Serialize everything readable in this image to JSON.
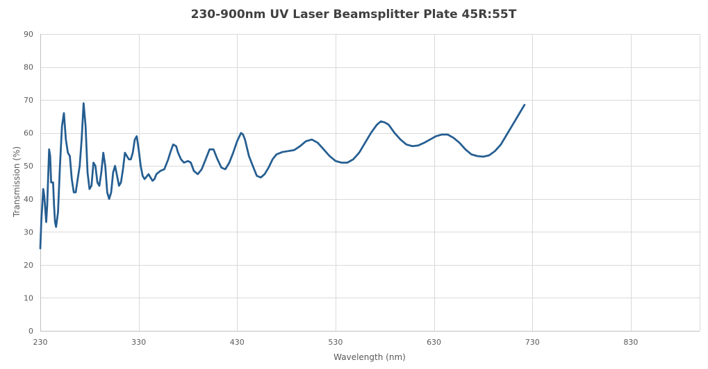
{
  "chart_data": {
    "type": "line",
    "title": "230-900nm UV Laser Beamsplitter Plate 45R:55T",
    "xlabel": "Wavelength (nm)",
    "ylabel": "Transmission (%)",
    "xlim": [
      230,
      900
    ],
    "ylim": [
      0,
      90
    ],
    "x_ticks": [
      230,
      330,
      430,
      530,
      630,
      730,
      830
    ],
    "y_ticks": [
      0,
      10,
      20,
      30,
      40,
      50,
      60,
      70,
      80,
      90
    ],
    "grid": true,
    "legend": "none",
    "series": [
      {
        "color": "#255e91",
        "points": [
          [
            230,
            25
          ],
          [
            231,
            33
          ],
          [
            233,
            43
          ],
          [
            234,
            41
          ],
          [
            236,
            33
          ],
          [
            237,
            38
          ],
          [
            239,
            55
          ],
          [
            240,
            53
          ],
          [
            241,
            45
          ],
          [
            243,
            45
          ],
          [
            244,
            38
          ],
          [
            245,
            33
          ],
          [
            246,
            31.5
          ],
          [
            248,
            36
          ],
          [
            250,
            50
          ],
          [
            252,
            62
          ],
          [
            254,
            66
          ],
          [
            256,
            58
          ],
          [
            258,
            54
          ],
          [
            260,
            53
          ],
          [
            262,
            46
          ],
          [
            264,
            42
          ],
          [
            266,
            42
          ],
          [
            268,
            46
          ],
          [
            270,
            50
          ],
          [
            272,
            58
          ],
          [
            274,
            69
          ],
          [
            276,
            62
          ],
          [
            278,
            48
          ],
          [
            280,
            43
          ],
          [
            282,
            44
          ],
          [
            284,
            51
          ],
          [
            286,
            50
          ],
          [
            288,
            45
          ],
          [
            290,
            44
          ],
          [
            292,
            48
          ],
          [
            294,
            54
          ],
          [
            296,
            50
          ],
          [
            298,
            42
          ],
          [
            300,
            40
          ],
          [
            302,
            42
          ],
          [
            304,
            48
          ],
          [
            306,
            50
          ],
          [
            308,
            47
          ],
          [
            310,
            44
          ],
          [
            312,
            45
          ],
          [
            314,
            49
          ],
          [
            316,
            54
          ],
          [
            318,
            53
          ],
          [
            320,
            52
          ],
          [
            322,
            52
          ],
          [
            324,
            54
          ],
          [
            326,
            58
          ],
          [
            328,
            59
          ],
          [
            330,
            55
          ],
          [
            332,
            50
          ],
          [
            334,
            47
          ],
          [
            336,
            46
          ],
          [
            340,
            47.5
          ],
          [
            342,
            46.5
          ],
          [
            344,
            45.5
          ],
          [
            346,
            46
          ],
          [
            348,
            47.5
          ],
          [
            352,
            48.5
          ],
          [
            356,
            49
          ],
          [
            360,
            52
          ],
          [
            362,
            54
          ],
          [
            365,
            56.5
          ],
          [
            368,
            56
          ],
          [
            370,
            54
          ],
          [
            373,
            52
          ],
          [
            376,
            51
          ],
          [
            380,
            51.5
          ],
          [
            383,
            51
          ],
          [
            386,
            48.5
          ],
          [
            390,
            47.5
          ],
          [
            394,
            49
          ],
          [
            398,
            52
          ],
          [
            402,
            55
          ],
          [
            406,
            55
          ],
          [
            410,
            52
          ],
          [
            414,
            49.5
          ],
          [
            418,
            49
          ],
          [
            422,
            51
          ],
          [
            426,
            54
          ],
          [
            430,
            57.5
          ],
          [
            434,
            60
          ],
          [
            436,
            59.5
          ],
          [
            438,
            58
          ],
          [
            442,
            53
          ],
          [
            446,
            50
          ],
          [
            450,
            47
          ],
          [
            454,
            46.5
          ],
          [
            458,
            47.5
          ],
          [
            462,
            49.5
          ],
          [
            466,
            52
          ],
          [
            470,
            53.5
          ],
          [
            476,
            54.2
          ],
          [
            482,
            54.5
          ],
          [
            488,
            54.8
          ],
          [
            494,
            56
          ],
          [
            500,
            57.5
          ],
          [
            506,
            58
          ],
          [
            512,
            57
          ],
          [
            518,
            55
          ],
          [
            524,
            53
          ],
          [
            530,
            51.5
          ],
          [
            536,
            51
          ],
          [
            542,
            51
          ],
          [
            548,
            52
          ],
          [
            554,
            54
          ],
          [
            560,
            57
          ],
          [
            566,
            60
          ],
          [
            572,
            62.5
          ],
          [
            576,
            63.5
          ],
          [
            580,
            63.2
          ],
          [
            584,
            62.5
          ],
          [
            590,
            60
          ],
          [
            596,
            58
          ],
          [
            602,
            56.5
          ],
          [
            608,
            56
          ],
          [
            614,
            56.2
          ],
          [
            620,
            57
          ],
          [
            626,
            58
          ],
          [
            632,
            59
          ],
          [
            638,
            59.5
          ],
          [
            644,
            59.5
          ],
          [
            650,
            58.5
          ],
          [
            656,
            57
          ],
          [
            662,
            55
          ],
          [
            668,
            53.5
          ],
          [
            674,
            53
          ],
          [
            680,
            52.8
          ],
          [
            686,
            53.2
          ],
          [
            692,
            54.5
          ],
          [
            698,
            56.5
          ],
          [
            704,
            59.5
          ],
          [
            710,
            62.5
          ],
          [
            716,
            65.5
          ],
          [
            720,
            67.5
          ],
          [
            722,
            68.5
          ]
        ]
      }
    ]
  }
}
